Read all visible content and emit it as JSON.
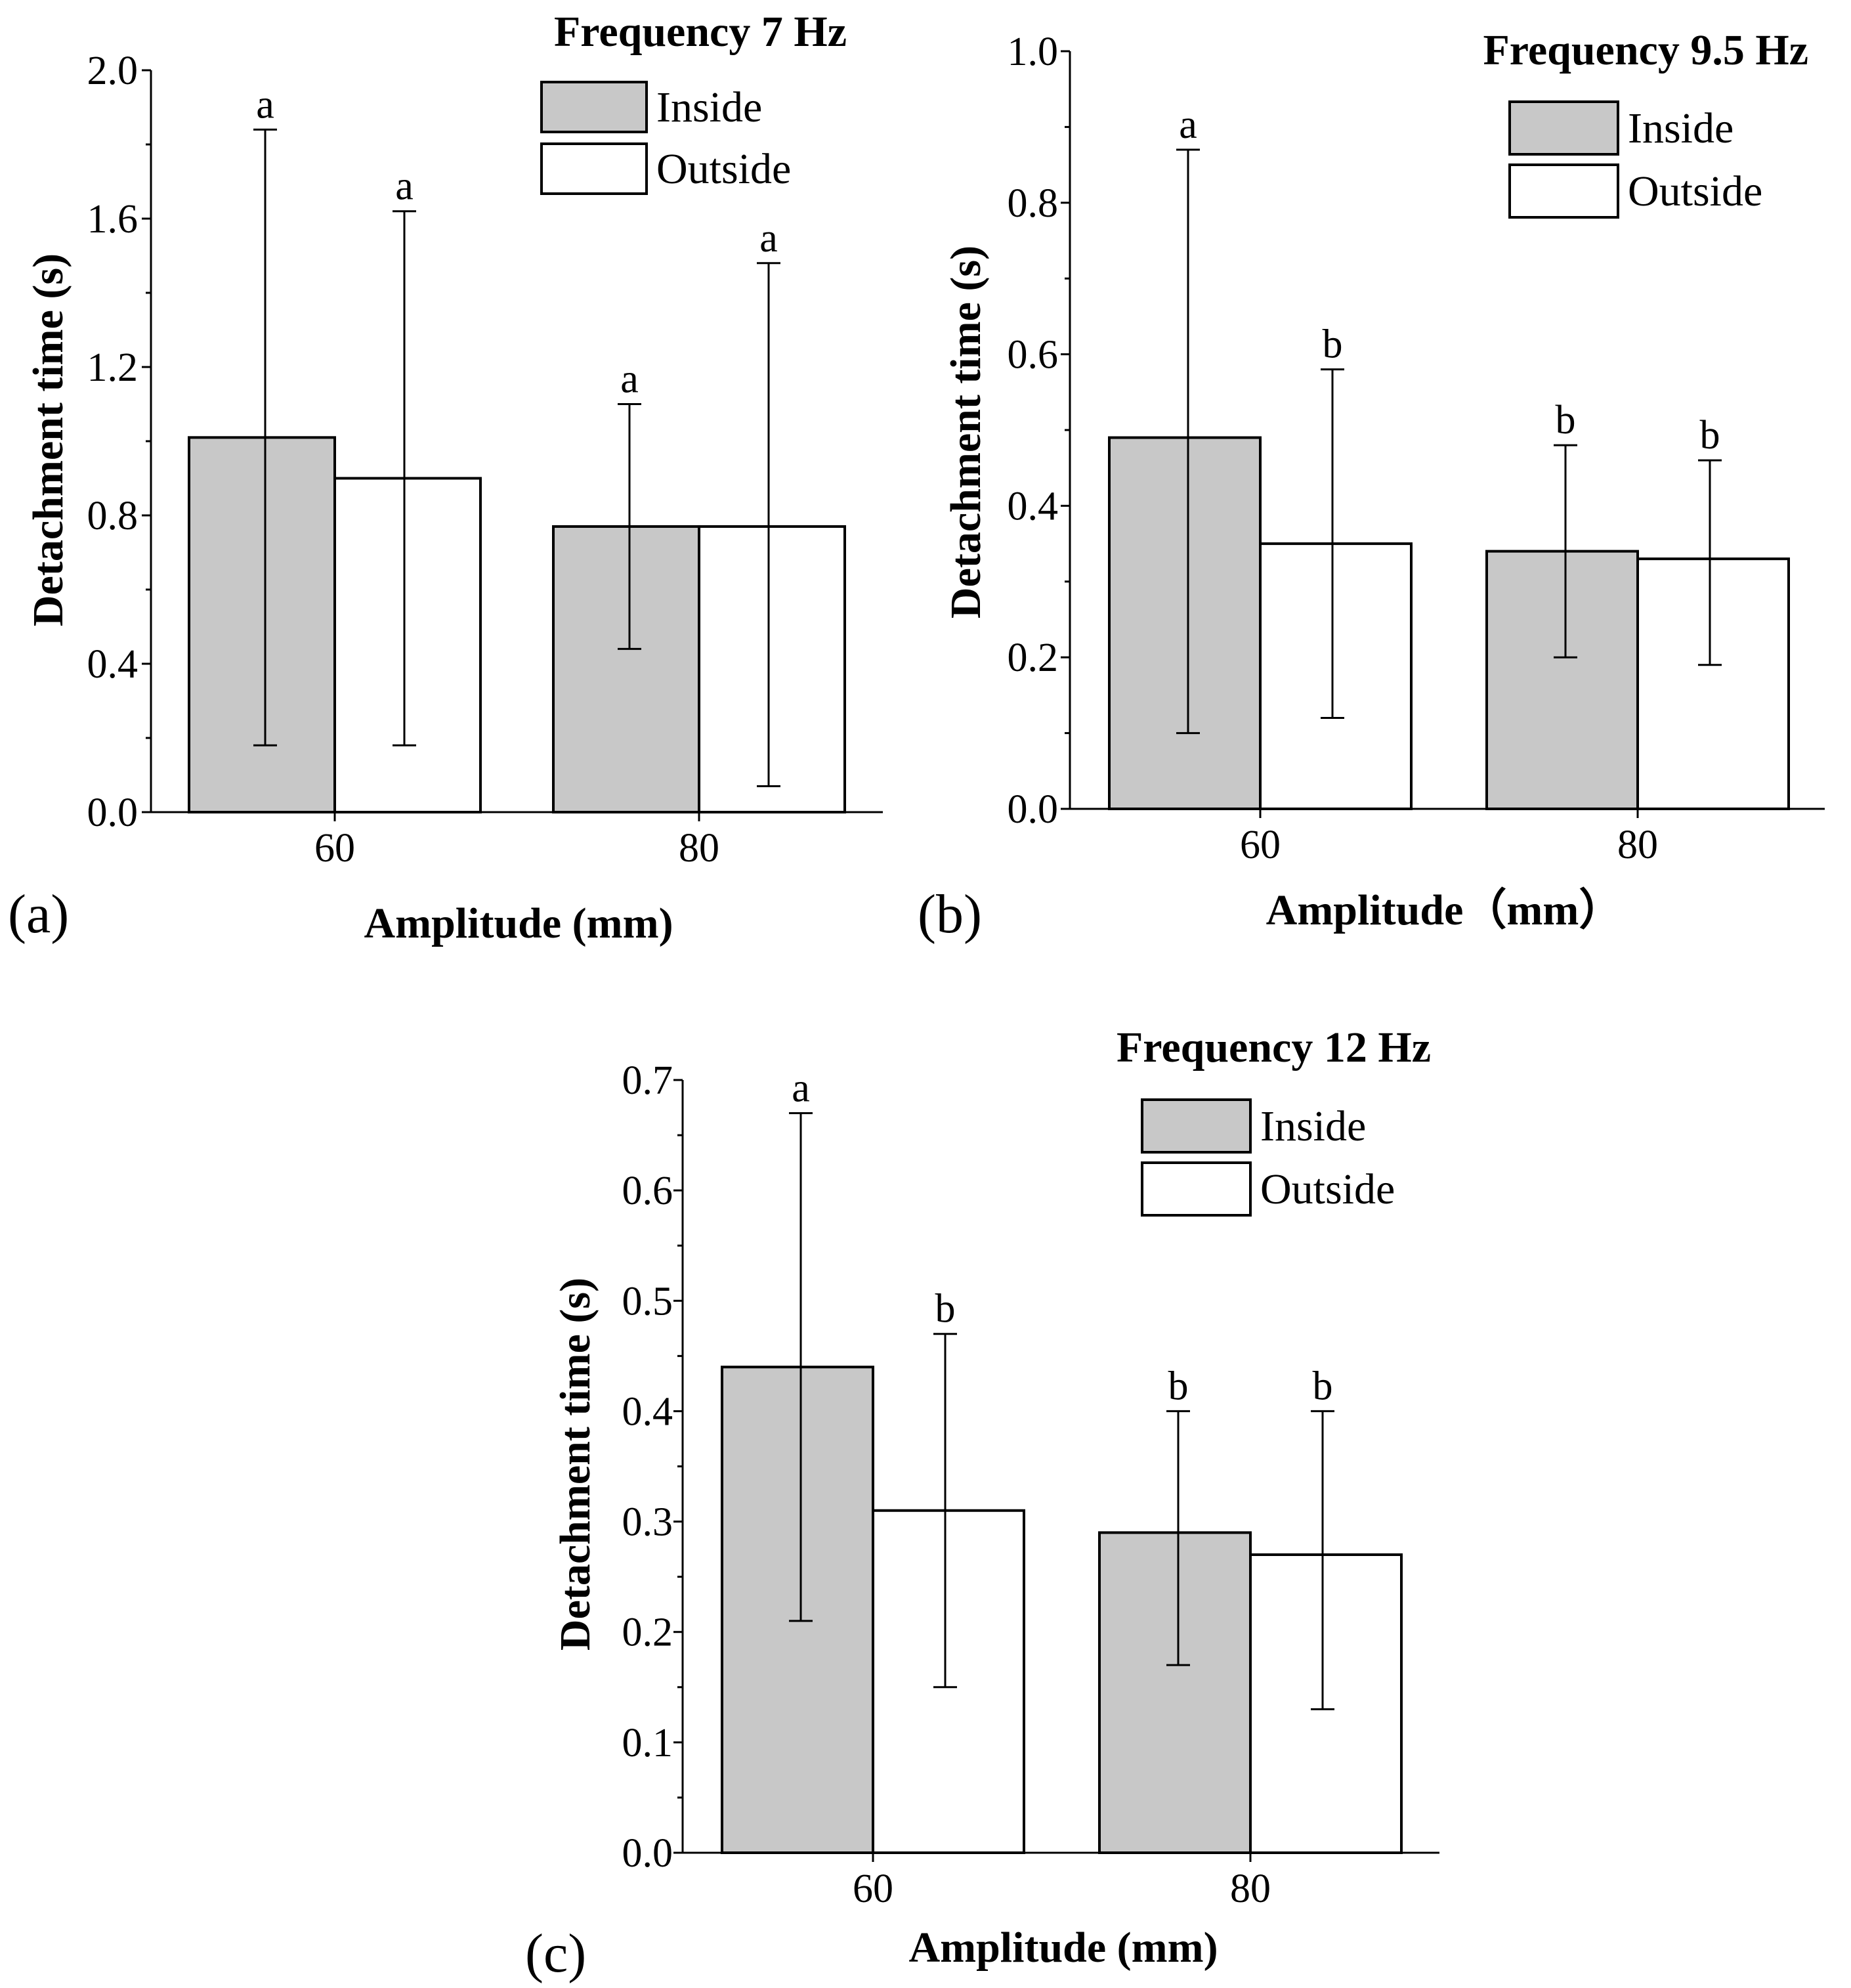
{
  "chart_data": [
    {
      "type": "bar",
      "panel_label": "(a)",
      "title": "Frequency 7 Hz",
      "xlabel": "Amplitude (mm)",
      "ylabel": "Detachment time (s)",
      "ylim": [
        0,
        2.0
      ],
      "yticks": [
        0.0,
        0.4,
        0.8,
        1.2,
        1.6,
        2.0
      ],
      "ytick_labels": [
        "0.0",
        "0.4",
        "0.8",
        "1.2",
        "1.6",
        "2.0"
      ],
      "categories": [
        "60",
        "80"
      ],
      "legend_position": "top-right",
      "series": [
        {
          "name": "Inside",
          "color": "#c8c8c8",
          "values": [
            1.01,
            0.77
          ],
          "err_low": [
            0.18,
            0.44
          ],
          "err_high": [
            1.84,
            1.1
          ],
          "sig": [
            "a",
            "a"
          ]
        },
        {
          "name": "Outside",
          "color": "#ffffff",
          "values": [
            0.9,
            0.77
          ],
          "err_low": [
            0.18,
            0.07
          ],
          "err_high": [
            1.62,
            1.48
          ],
          "sig": [
            "a",
            "a"
          ]
        }
      ]
    },
    {
      "type": "bar",
      "panel_label": "(b)",
      "title": "Frequency 9.5 Hz",
      "xlabel": "Amplitude（mm）",
      "ylabel": "Detachment time (s)",
      "ylim": [
        0,
        1.0
      ],
      "yticks": [
        0.0,
        0.2,
        0.4,
        0.6,
        0.8,
        1.0
      ],
      "ytick_labels": [
        "0.0",
        "0.2",
        "0.4",
        "0.6",
        "0.8",
        "1.0"
      ],
      "categories": [
        "60",
        "80"
      ],
      "legend_position": "top-right",
      "series": [
        {
          "name": "Inside",
          "color": "#c8c8c8",
          "values": [
            0.49,
            0.34
          ],
          "err_low": [
            0.1,
            0.2
          ],
          "err_high": [
            0.87,
            0.48
          ],
          "sig": [
            "a",
            "b"
          ]
        },
        {
          "name": "Outside",
          "color": "#ffffff",
          "values": [
            0.35,
            0.33
          ],
          "err_low": [
            0.12,
            0.19
          ],
          "err_high": [
            0.58,
            0.46
          ],
          "sig": [
            "b",
            "b"
          ]
        }
      ]
    },
    {
      "type": "bar",
      "panel_label": "(c)",
      "title": "Frequency 12 Hz",
      "xlabel": "Amplitude (mm)",
      "ylabel": "Detachment time (s)",
      "ylim": [
        0,
        0.7
      ],
      "yticks": [
        0.0,
        0.1,
        0.2,
        0.3,
        0.4,
        0.5,
        0.6,
        0.7
      ],
      "ytick_labels": [
        "0.0",
        "0.1",
        "0.2",
        "0.3",
        "0.4",
        "0.5",
        "0.6",
        "0.7"
      ],
      "categories": [
        "60",
        "80"
      ],
      "legend_position": "top-right",
      "series": [
        {
          "name": "Inside",
          "color": "#c8c8c8",
          "values": [
            0.44,
            0.29
          ],
          "err_low": [
            0.21,
            0.17
          ],
          "err_high": [
            0.67,
            0.4
          ],
          "sig": [
            "a",
            "b"
          ]
        },
        {
          "name": "Outside",
          "color": "#ffffff",
          "values": [
            0.31,
            0.27
          ],
          "err_low": [
            0.15,
            0.13
          ],
          "err_high": [
            0.47,
            0.4
          ],
          "sig": [
            "b",
            "b"
          ]
        }
      ]
    }
  ]
}
